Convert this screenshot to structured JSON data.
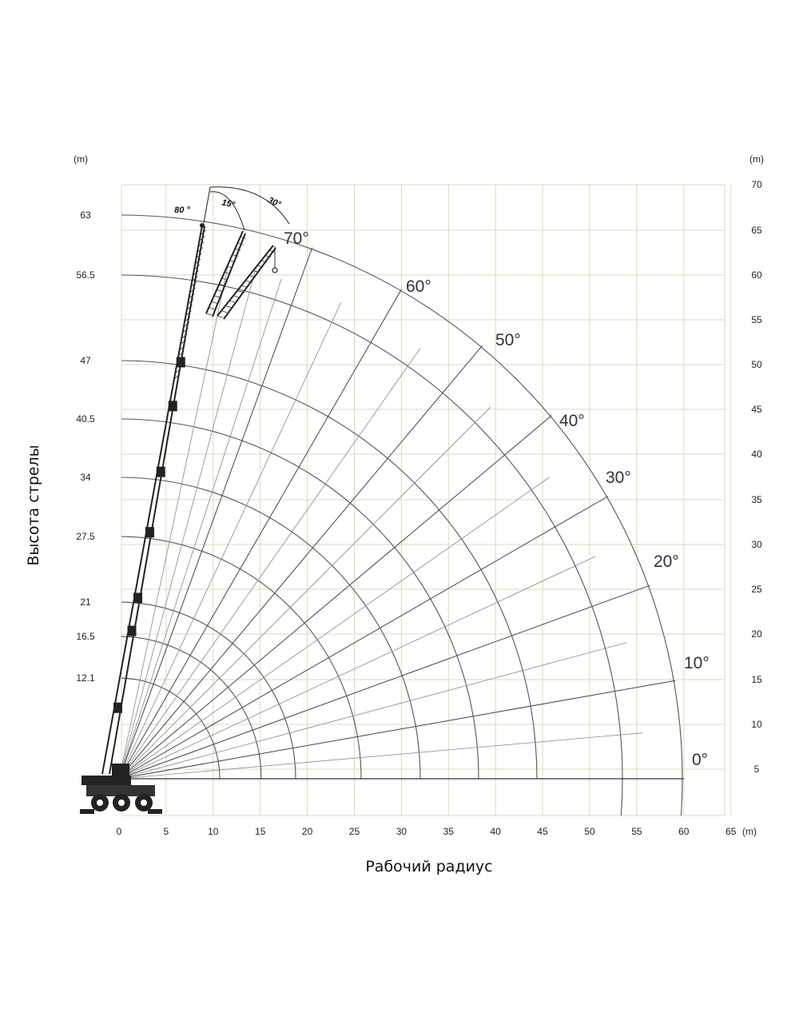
{
  "chart_data": {
    "type": "diagram",
    "left_axis": {
      "unit": "(m)",
      "labels": [
        "63",
        "56.5",
        "47",
        "40.5",
        "34",
        "27.5",
        "21",
        "16.5",
        "12.1"
      ]
    },
    "right_axis": {
      "unit": "(m)",
      "labels": [
        "70",
        "65",
        "60",
        "55",
        "50",
        "45",
        "40",
        "35",
        "30",
        "25",
        "20",
        "15",
        "10",
        "5"
      ]
    },
    "bottom_axis": {
      "unit": "(m)",
      "labels": [
        "0",
        "5",
        "10",
        "15",
        "20",
        "25",
        "30",
        "35",
        "40",
        "45",
        "50",
        "55",
        "60",
        "65"
      ]
    },
    "angle_labels": [
      "0°",
      "10°",
      "20°",
      "30°",
      "40°",
      "50°",
      "60°",
      "70°"
    ],
    "jib_angles": [
      "80 °",
      "15°",
      "30°"
    ],
    "boom_lengths": [
      12.1,
      16.5,
      21,
      27.5,
      34,
      40.5,
      47,
      56.5,
      63
    ],
    "xlabel": "Рабочий радиус",
    "ylabel": "Высота стрелы",
    "grid_color": "#cfe3b4"
  }
}
